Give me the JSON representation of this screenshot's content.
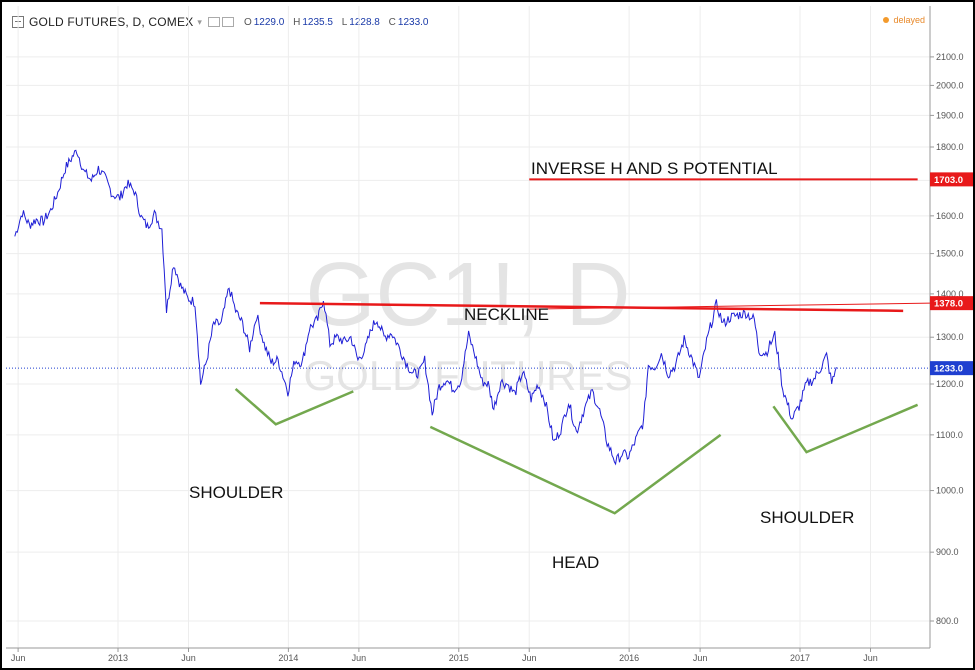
{
  "header": {
    "symbol": "GOLD FUTURES, D, COMEX",
    "ohlc": [
      {
        "key": "O",
        "value": "1229.0"
      },
      {
        "key": "H",
        "value": "1235.5"
      },
      {
        "key": "L",
        "value": "1228.8"
      },
      {
        "key": "C",
        "value": "1233.0"
      }
    ],
    "status": "delayed"
  },
  "colors": {
    "price_line": "#1f1fd6",
    "annotation_red": "#e8191a",
    "annotation_green": "#73a84e",
    "last_price_tag": "#1f3fd0",
    "watermark": "#e3e3e3",
    "delayed": "#f39a2c"
  },
  "watermark": {
    "line1": "GC1!, D",
    "line2": "GOLD FUTURES"
  },
  "chart_data": {
    "type": "line",
    "y_axis": {
      "ticks": [
        2100,
        2000,
        1900,
        1800,
        1700,
        1600,
        1500,
        1400,
        1300,
        1200,
        1100,
        1000,
        900,
        800
      ],
      "tick_labels": [
        "2100.0",
        "2000.0",
        "1900.0",
        "1800.0",
        "1700.0",
        "1600.0",
        "1500.0",
        "1400.0",
        "1300.0",
        "1200.0",
        "1100.0",
        "1000.0",
        "900.0",
        "800.0"
      ],
      "range": [
        760,
        2110
      ],
      "scale": "log",
      "position": "right"
    },
    "x_axis": {
      "range": [
        "2012-05-25",
        "2017-09-10"
      ],
      "ticks": [
        {
          "date": "2012-06-01",
          "label": "Jun"
        },
        {
          "date": "2013-01-01",
          "label": "2013"
        },
        {
          "date": "2013-06-01",
          "label": "Jun"
        },
        {
          "date": "2014-01-01",
          "label": "2014"
        },
        {
          "date": "2014-06-01",
          "label": "Jun"
        },
        {
          "date": "2015-01-01",
          "label": "2015"
        },
        {
          "date": "2015-06-01",
          "label": "Jun"
        },
        {
          "date": "2016-01-01",
          "label": "2016"
        },
        {
          "date": "2016-06-01",
          "label": "Jun"
        },
        {
          "date": "2017-01-01",
          "label": "2017"
        },
        {
          "date": "2017-06-01",
          "label": "Jun"
        }
      ]
    },
    "grid": true,
    "series": [
      {
        "points": [
          [
            "2012-05-25",
            1545
          ],
          [
            "2012-06-10",
            1610
          ],
          [
            "2012-06-25",
            1575
          ],
          [
            "2012-07-10",
            1590
          ],
          [
            "2012-07-25",
            1585
          ],
          [
            "2012-08-10",
            1615
          ],
          [
            "2012-08-25",
            1665
          ],
          [
            "2012-09-10",
            1735
          ],
          [
            "2012-09-25",
            1770
          ],
          [
            "2012-10-05",
            1790
          ],
          [
            "2012-10-20",
            1725
          ],
          [
            "2012-11-05",
            1700
          ],
          [
            "2012-11-20",
            1735
          ],
          [
            "2012-12-05",
            1705
          ],
          [
            "2012-12-20",
            1660
          ],
          [
            "2013-01-05",
            1650
          ],
          [
            "2013-01-20",
            1690
          ],
          [
            "2013-02-05",
            1670
          ],
          [
            "2013-02-20",
            1595
          ],
          [
            "2013-03-05",
            1570
          ],
          [
            "2013-03-20",
            1605
          ],
          [
            "2013-04-05",
            1565
          ],
          [
            "2013-04-15",
            1360
          ],
          [
            "2013-04-30",
            1475
          ],
          [
            "2013-05-15",
            1420
          ],
          [
            "2013-05-30",
            1390
          ],
          [
            "2013-06-15",
            1380
          ],
          [
            "2013-06-27",
            1200
          ],
          [
            "2013-07-10",
            1250
          ],
          [
            "2013-07-25",
            1330
          ],
          [
            "2013-08-10",
            1330
          ],
          [
            "2013-08-27",
            1415
          ],
          [
            "2013-09-10",
            1360
          ],
          [
            "2013-09-25",
            1330
          ],
          [
            "2013-10-10",
            1275
          ],
          [
            "2013-10-25",
            1350
          ],
          [
            "2013-11-10",
            1285
          ],
          [
            "2013-11-25",
            1245
          ],
          [
            "2013-12-10",
            1250
          ],
          [
            "2013-12-31",
            1185
          ],
          [
            "2014-01-15",
            1250
          ],
          [
            "2014-01-31",
            1245
          ],
          [
            "2014-02-15",
            1320
          ],
          [
            "2014-03-05",
            1340
          ],
          [
            "2014-03-17",
            1390
          ],
          [
            "2014-03-31",
            1285
          ],
          [
            "2014-04-15",
            1300
          ],
          [
            "2014-05-01",
            1290
          ],
          [
            "2014-05-15",
            1300
          ],
          [
            "2014-05-30",
            1250
          ],
          [
            "2014-06-15",
            1275
          ],
          [
            "2014-06-30",
            1325
          ],
          [
            "2014-07-10",
            1340
          ],
          [
            "2014-07-25",
            1300
          ],
          [
            "2014-08-10",
            1310
          ],
          [
            "2014-08-25",
            1280
          ],
          [
            "2014-09-10",
            1245
          ],
          [
            "2014-09-25",
            1220
          ],
          [
            "2014-10-10",
            1225
          ],
          [
            "2014-10-20",
            1250
          ],
          [
            "2014-11-05",
            1140
          ],
          [
            "2014-11-20",
            1195
          ],
          [
            "2014-12-05",
            1210
          ],
          [
            "2014-12-20",
            1190
          ],
          [
            "2015-01-05",
            1205
          ],
          [
            "2015-01-22",
            1305
          ],
          [
            "2015-02-05",
            1260
          ],
          [
            "2015-02-20",
            1205
          ],
          [
            "2015-03-05",
            1200
          ],
          [
            "2015-03-17",
            1150
          ],
          [
            "2015-04-01",
            1205
          ],
          [
            "2015-04-15",
            1200
          ],
          [
            "2015-05-01",
            1180
          ],
          [
            "2015-05-18",
            1225
          ],
          [
            "2015-06-05",
            1170
          ],
          [
            "2015-06-20",
            1200
          ],
          [
            "2015-07-05",
            1165
          ],
          [
            "2015-07-24",
            1085
          ],
          [
            "2015-08-10",
            1115
          ],
          [
            "2015-08-24",
            1165
          ],
          [
            "2015-09-10",
            1105
          ],
          [
            "2015-09-25",
            1145
          ],
          [
            "2015-10-14",
            1185
          ],
          [
            "2015-10-30",
            1145
          ],
          [
            "2015-11-15",
            1085
          ],
          [
            "2015-12-03",
            1050
          ],
          [
            "2015-12-17",
            1065
          ],
          [
            "2015-12-31",
            1060
          ],
          [
            "2016-01-15",
            1090
          ],
          [
            "2016-02-01",
            1125
          ],
          [
            "2016-02-11",
            1240
          ],
          [
            "2016-02-25",
            1235
          ],
          [
            "2016-03-10",
            1265
          ],
          [
            "2016-03-25",
            1220
          ],
          [
            "2016-04-10",
            1240
          ],
          [
            "2016-04-28",
            1295
          ],
          [
            "2016-05-10",
            1265
          ],
          [
            "2016-05-30",
            1210
          ],
          [
            "2016-06-15",
            1290
          ],
          [
            "2016-07-06",
            1375
          ],
          [
            "2016-07-20",
            1330
          ],
          [
            "2016-08-05",
            1345
          ],
          [
            "2016-08-20",
            1350
          ],
          [
            "2016-09-07",
            1355
          ],
          [
            "2016-09-25",
            1340
          ],
          [
            "2016-10-05",
            1270
          ],
          [
            "2016-10-20",
            1265
          ],
          [
            "2016-11-08",
            1305
          ],
          [
            "2016-11-25",
            1190
          ],
          [
            "2016-12-15",
            1130
          ],
          [
            "2016-12-30",
            1155
          ],
          [
            "2017-01-15",
            1200
          ],
          [
            "2017-01-31",
            1210
          ],
          [
            "2017-02-15",
            1235
          ],
          [
            "2017-02-27",
            1260
          ],
          [
            "2017-03-10",
            1200
          ],
          [
            "2017-03-20",
            1235
          ]
        ]
      }
    ],
    "annotations": {
      "title_label": "INVERSE H AND S POTENTIAL",
      "neckline_label": "NECKLINE",
      "pattern_labels": {
        "left_shoulder": "SHOULDER",
        "head": "HEAD",
        "right_shoulder": "SHOULDER"
      },
      "levels": [
        {
          "value": 1703,
          "label": "1703.0",
          "color": "#e8191a"
        },
        {
          "value": 1378,
          "label": "1378.0",
          "color": "#e8191a"
        }
      ],
      "last_price": {
        "value": 1233,
        "label": "1233.0",
        "color": "#1f3fd0"
      },
      "target_line": {
        "from": [
          "2015-06-01",
          1703
        ],
        "to": [
          "2017-09-10",
          1703
        ]
      },
      "neckline": {
        "from": [
          "2013-11-01",
          1378
        ],
        "to": [
          "2017-08-10",
          1360
        ]
      },
      "green_lines": [
        {
          "points": [
            [
              "2013-09-10",
              1190
            ],
            [
              "2013-12-05",
              1120
            ],
            [
              "2014-05-20",
              1185
            ]
          ]
        },
        {
          "points": [
            [
              "2014-11-01",
              1115
            ],
            [
              "2015-12-01",
              962
            ],
            [
              "2016-07-15",
              1100
            ]
          ]
        },
        {
          "points": [
            [
              "2016-11-05",
              1155
            ],
            [
              "2017-01-15",
              1068
            ],
            [
              "2017-09-10",
              1158
            ]
          ]
        }
      ]
    }
  }
}
